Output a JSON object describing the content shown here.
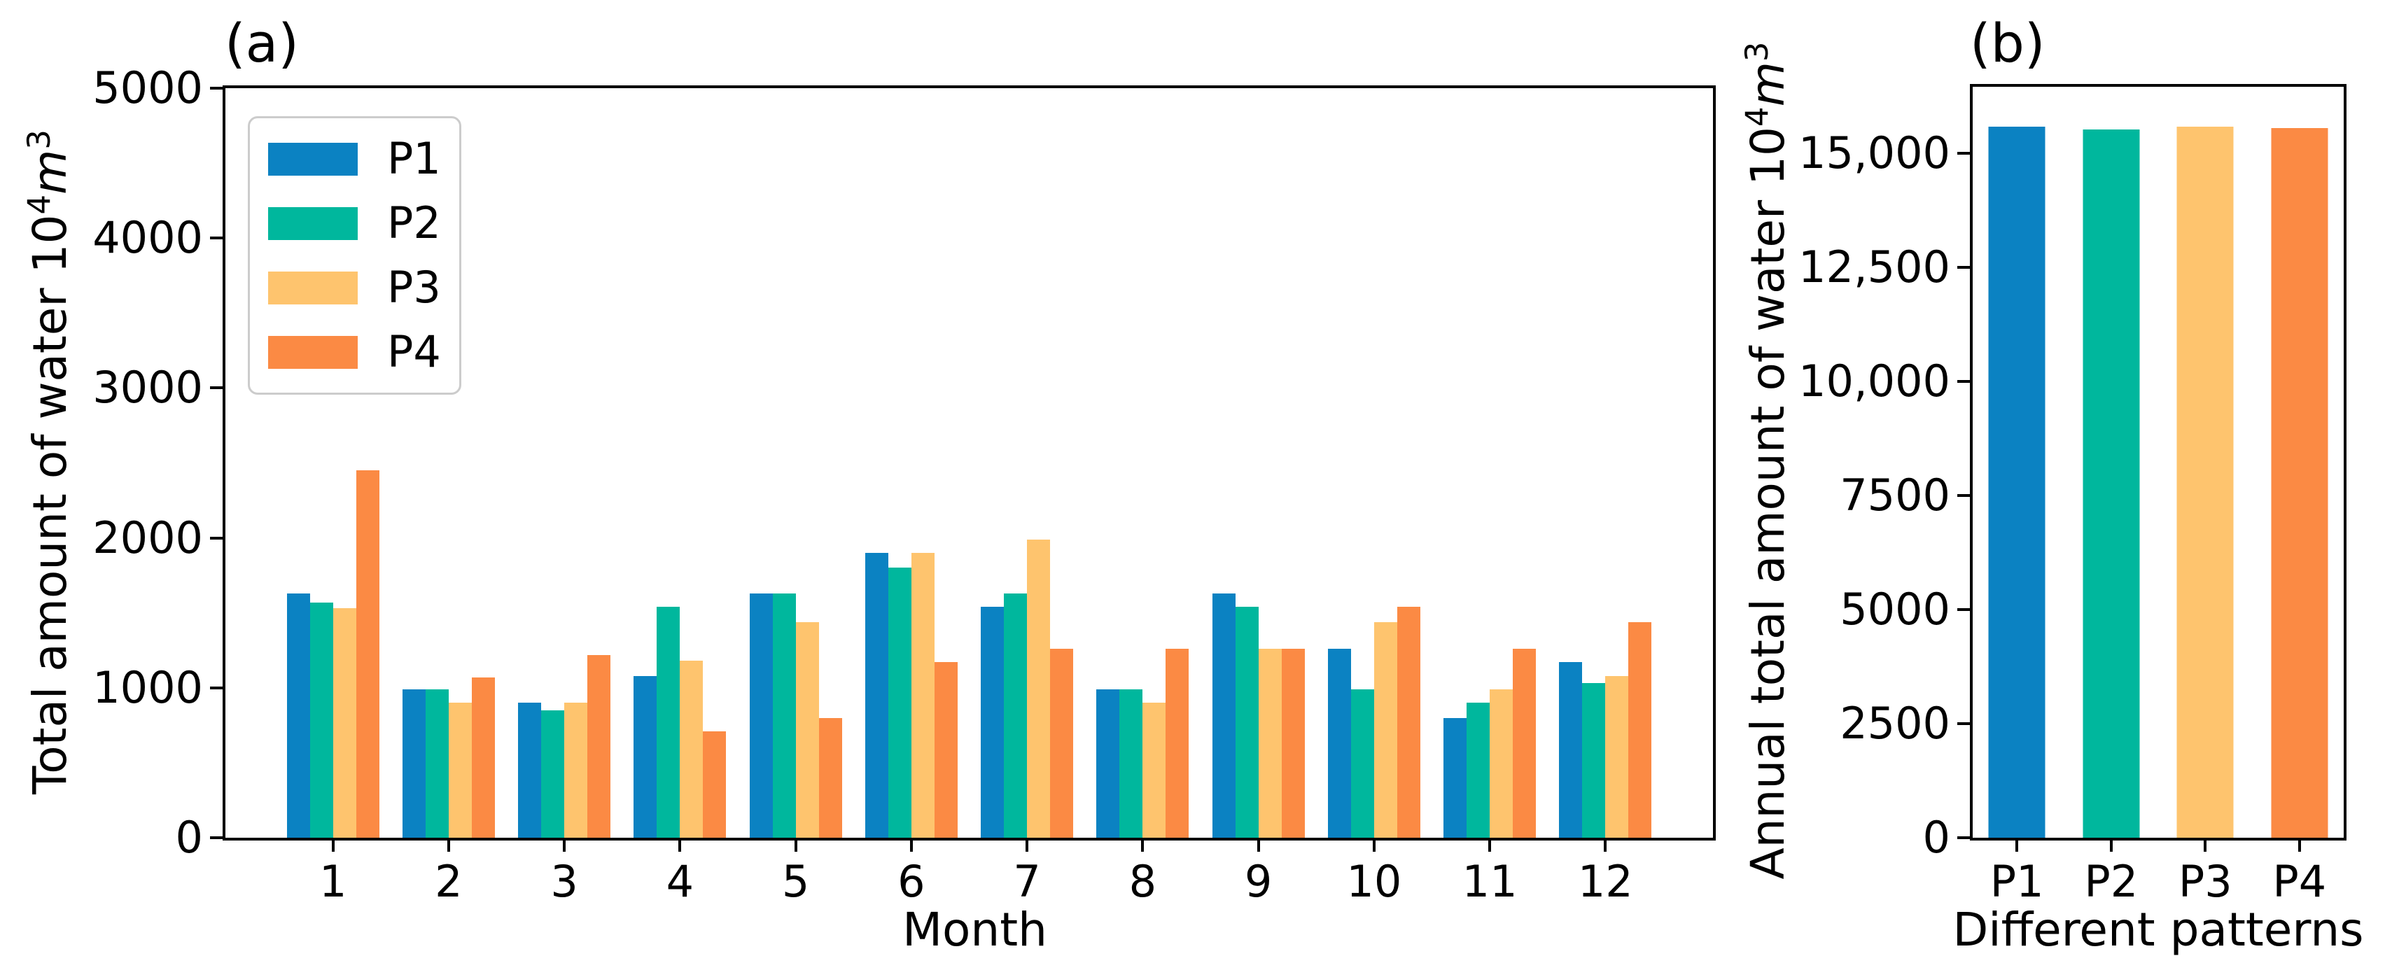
{
  "figure": {
    "background": "#ffffff",
    "axis_color": "#000000",
    "legend_border_color": "#cccccc"
  },
  "panel_a": {
    "title": "(a)",
    "xlabel": "Month",
    "ylabel_text": "Total amount of water ",
    "ylabel_base": "10",
    "ylabel_base_exp": "4",
    "ylabel_var": "m",
    "ylabel_var_exp": "3"
  },
  "panel_b": {
    "title": "(b)",
    "xlabel": "Different patterns",
    "ylabel_text": "Annual total amount of water ",
    "ylabel_base": "10",
    "ylabel_base_exp": "4",
    "ylabel_var": "m",
    "ylabel_var_exp": "3"
  },
  "chart_data": [
    {
      "id": "a",
      "type": "bar",
      "title": "(a)",
      "xlabel": "Month",
      "ylabel": "Total amount of water 10^4 m^3",
      "categories": [
        "1",
        "2",
        "3",
        "4",
        "5",
        "6",
        "7",
        "8",
        "9",
        "10",
        "11",
        "12"
      ],
      "ylim": [
        0,
        5000
      ],
      "xlim": [
        0.07,
        12.93
      ],
      "yticks": [
        0,
        1000,
        2000,
        3000,
        4000,
        5000
      ],
      "ytick_labels": [
        "0",
        "1000",
        "2000",
        "3000",
        "4000",
        "5000"
      ],
      "grid": false,
      "legend_position": "upper left",
      "series": [
        {
          "name": "P1",
          "color": "#0b82c2",
          "values": [
            1630,
            990,
            900,
            1080,
            1630,
            1900,
            1540,
            990,
            1630,
            1260,
            800,
            1170
          ]
        },
        {
          "name": "P2",
          "color": "#00b79d",
          "values": [
            1570,
            990,
            850,
            1540,
            1630,
            1800,
            1630,
            990,
            1540,
            990,
            900,
            1030
          ]
        },
        {
          "name": "P3",
          "color": "#fec46e",
          "values": [
            1530,
            900,
            900,
            1180,
            1440,
            1900,
            1990,
            900,
            1260,
            1440,
            990,
            1080
          ]
        },
        {
          "name": "P4",
          "color": "#fb8a44",
          "values": [
            2450,
            1070,
            1220,
            710,
            800,
            1170,
            1260,
            1260,
            1260,
            1540,
            1260,
            1440
          ]
        }
      ]
    },
    {
      "id": "b",
      "type": "bar",
      "title": "(b)",
      "xlabel": "Different patterns",
      "ylabel": "Annual total amount of water 10^4 m^3",
      "categories": [
        "P1",
        "P2",
        "P3",
        "P4"
      ],
      "ylim": [
        0,
        16450
      ],
      "xlim": [
        -0.47,
        3.47
      ],
      "yticks": [
        0,
        2500,
        5000,
        7500,
        10000,
        12500,
        15000
      ],
      "ytick_labels": [
        "0",
        "2500",
        "5000",
        "7500",
        "10,000",
        "12,500",
        "15,000"
      ],
      "grid": false,
      "values": [
        15570,
        15520,
        15570,
        15550
      ],
      "colors": [
        "#0b82c2",
        "#00b79d",
        "#fec46e",
        "#fb8a44"
      ]
    }
  ]
}
